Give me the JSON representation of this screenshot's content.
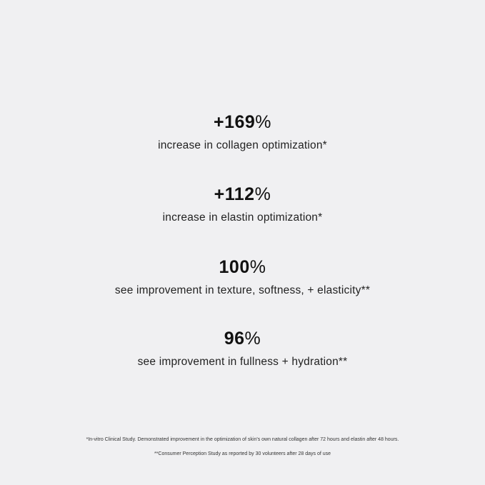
{
  "stats": [
    {
      "value": "+169",
      "unit": "%",
      "description": "increase in collagen optimization*"
    },
    {
      "value": "+112",
      "unit": "%",
      "description": "increase in elastin optimization*"
    },
    {
      "value": "100",
      "unit": "%",
      "description": "see improvement in texture, softness, + elasticity**"
    },
    {
      "value": "96",
      "unit": "%",
      "description": "see improvement in fullness + hydration**"
    }
  ],
  "footnotes": [
    "*In-vitro Clinical Study. Demonstrated improvement in the optimization of skin's own natural collagen after 72 hours and elastin after 48 hours.",
    "**Consumer Perception Study as reported by 30 volunteers after 28 days of use"
  ]
}
